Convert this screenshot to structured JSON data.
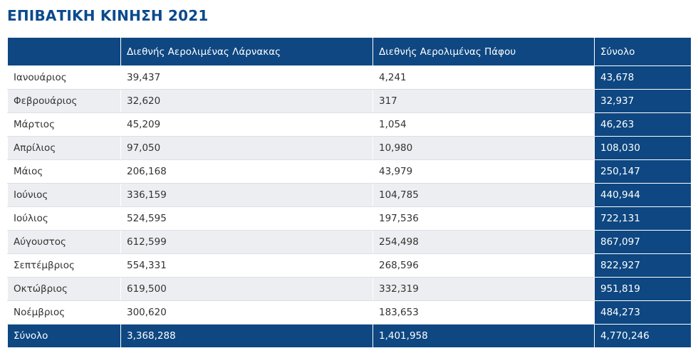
{
  "title": "ΕΠΙΒΑΤΙΚΗ ΚΙΝΗΣΗ 2021",
  "table": {
    "headers": [
      "",
      "Διεθνής Αερολιμένας Λάρνακας",
      "Διεθνής Αερολιμένας Πάφου",
      "Σύνολο"
    ],
    "rows": [
      [
        "Ιανουάριος",
        "39,437",
        "4,241",
        "43,678"
      ],
      [
        "Φεβρουάριος",
        "32,620",
        "317",
        "32,937"
      ],
      [
        "Μάρτιος",
        "45,209",
        "1,054",
        "46,263"
      ],
      [
        "Απρίλιος",
        "97,050",
        "10,980",
        "108,030"
      ],
      [
        "Μάιος",
        "206,168",
        "43,979",
        "250,147"
      ],
      [
        "Ιούνιος",
        "336,159",
        "104,785",
        "440,944"
      ],
      [
        "Ιούλιος",
        "524,595",
        "197,536",
        "722,131"
      ],
      [
        "Αύγουστος",
        "612,599",
        "254,498",
        "867,097"
      ],
      [
        "Σεπτέμβριος",
        "554,331",
        "268,596",
        "822,927"
      ],
      [
        "Οκτώβριος",
        "619,500",
        "332,319",
        "951,819"
      ],
      [
        "Νοέμβριος",
        "300,620",
        "183,653",
        "484,273"
      ]
    ],
    "footer": [
      "Σύνολο",
      "3,368,288",
      "1,401,958",
      "4,770,246"
    ]
  },
  "colors": {
    "header_bg": "#0e4781",
    "title": "#0a4a8c",
    "stripe": "#eceef1"
  }
}
